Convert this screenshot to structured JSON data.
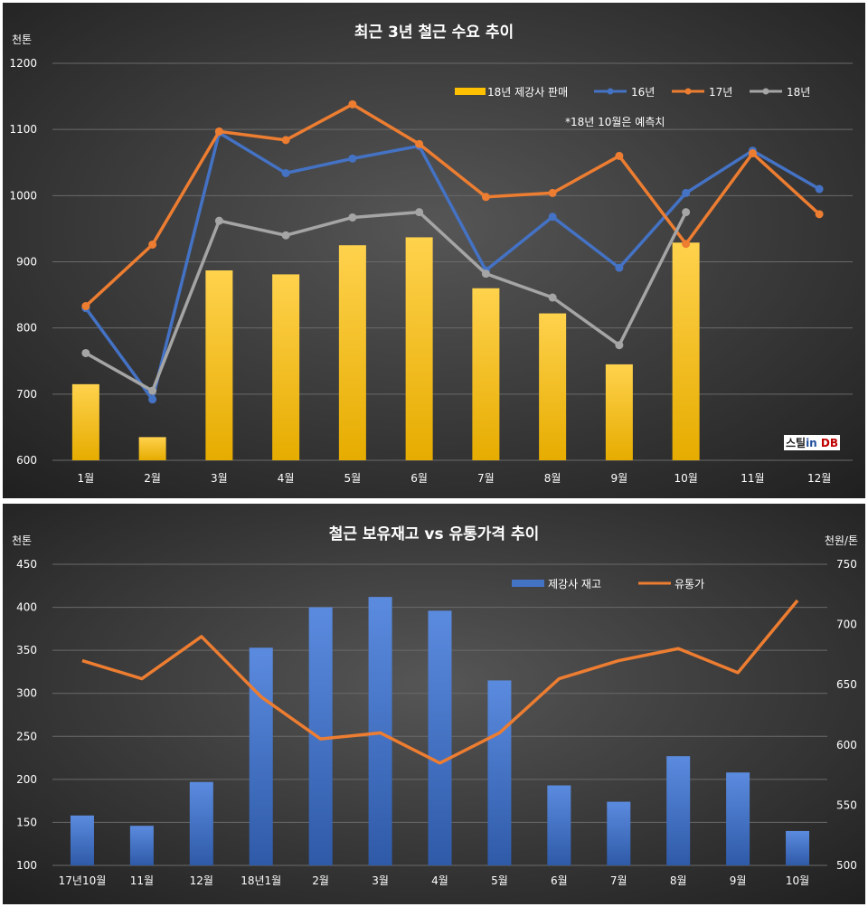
{
  "chart_data": [
    {
      "type": "bar",
      "title": "최근 3년 철근 수요 추이",
      "ylabel": "천톤",
      "ylim": [
        600,
        1200
      ],
      "yticks": [
        600,
        700,
        800,
        900,
        1000,
        1100,
        1200
      ],
      "categories": [
        "1월",
        "2월",
        "3월",
        "4월",
        "5월",
        "6월",
        "7월",
        "8월",
        "9월",
        "10월",
        "11월",
        "12월"
      ],
      "bar_series": {
        "name": "18년 제강사 판매",
        "values": [
          715,
          635,
          887,
          881,
          925,
          937,
          860,
          822,
          745,
          929,
          null,
          null
        ],
        "color": "#ffc000"
      },
      "line_series": [
        {
          "name": "16년",
          "values": [
            830,
            692,
            1095,
            1034,
            1056,
            1075,
            887,
            968,
            891,
            1004,
            1068,
            1010
          ],
          "color": "#4472c4"
        },
        {
          "name": "17년",
          "values": [
            833,
            926,
            1097,
            1084,
            1138,
            1078,
            998,
            1004,
            1060,
            927,
            1064,
            972
          ],
          "color": "#ed7d31"
        },
        {
          "name": "18년",
          "values": [
            762,
            705,
            962,
            940,
            967,
            975,
            882,
            846,
            774,
            975,
            null,
            null
          ],
          "color": "#a5a5a5"
        }
      ],
      "annotation": "*18년 10월은 예측치",
      "logo": "스틸in DB",
      "legend": "top-right",
      "grid": true
    },
    {
      "type": "bar",
      "title": "철근 보유재고 vs 유통가격 추이",
      "ylabel": "천톤",
      "y2label": "천원/톤",
      "ylim": [
        100,
        450
      ],
      "yticks": [
        100,
        150,
        200,
        250,
        300,
        350,
        400,
        450
      ],
      "y2lim": [
        500,
        750
      ],
      "y2ticks": [
        500,
        550,
        600,
        650,
        700,
        750
      ],
      "categories": [
        "17년10월",
        "11월",
        "12월",
        "18년1월",
        "2월",
        "3월",
        "4월",
        "5월",
        "6월",
        "7월",
        "8월",
        "9월",
        "10월"
      ],
      "bar_series": {
        "name": "제강사 재고",
        "values": [
          158,
          146,
          197,
          353,
          400,
          412,
          396,
          315,
          193,
          174,
          227,
          208,
          140
        ],
        "color": "#4472c4"
      },
      "line_series": [
        {
          "name": "유통가",
          "values": [
            670,
            655,
            690,
            640,
            605,
            610,
            585,
            610,
            655,
            670,
            680,
            660,
            720
          ],
          "color": "#ed7d31",
          "axis": "right"
        }
      ],
      "legend": "top-right",
      "grid": true
    }
  ]
}
